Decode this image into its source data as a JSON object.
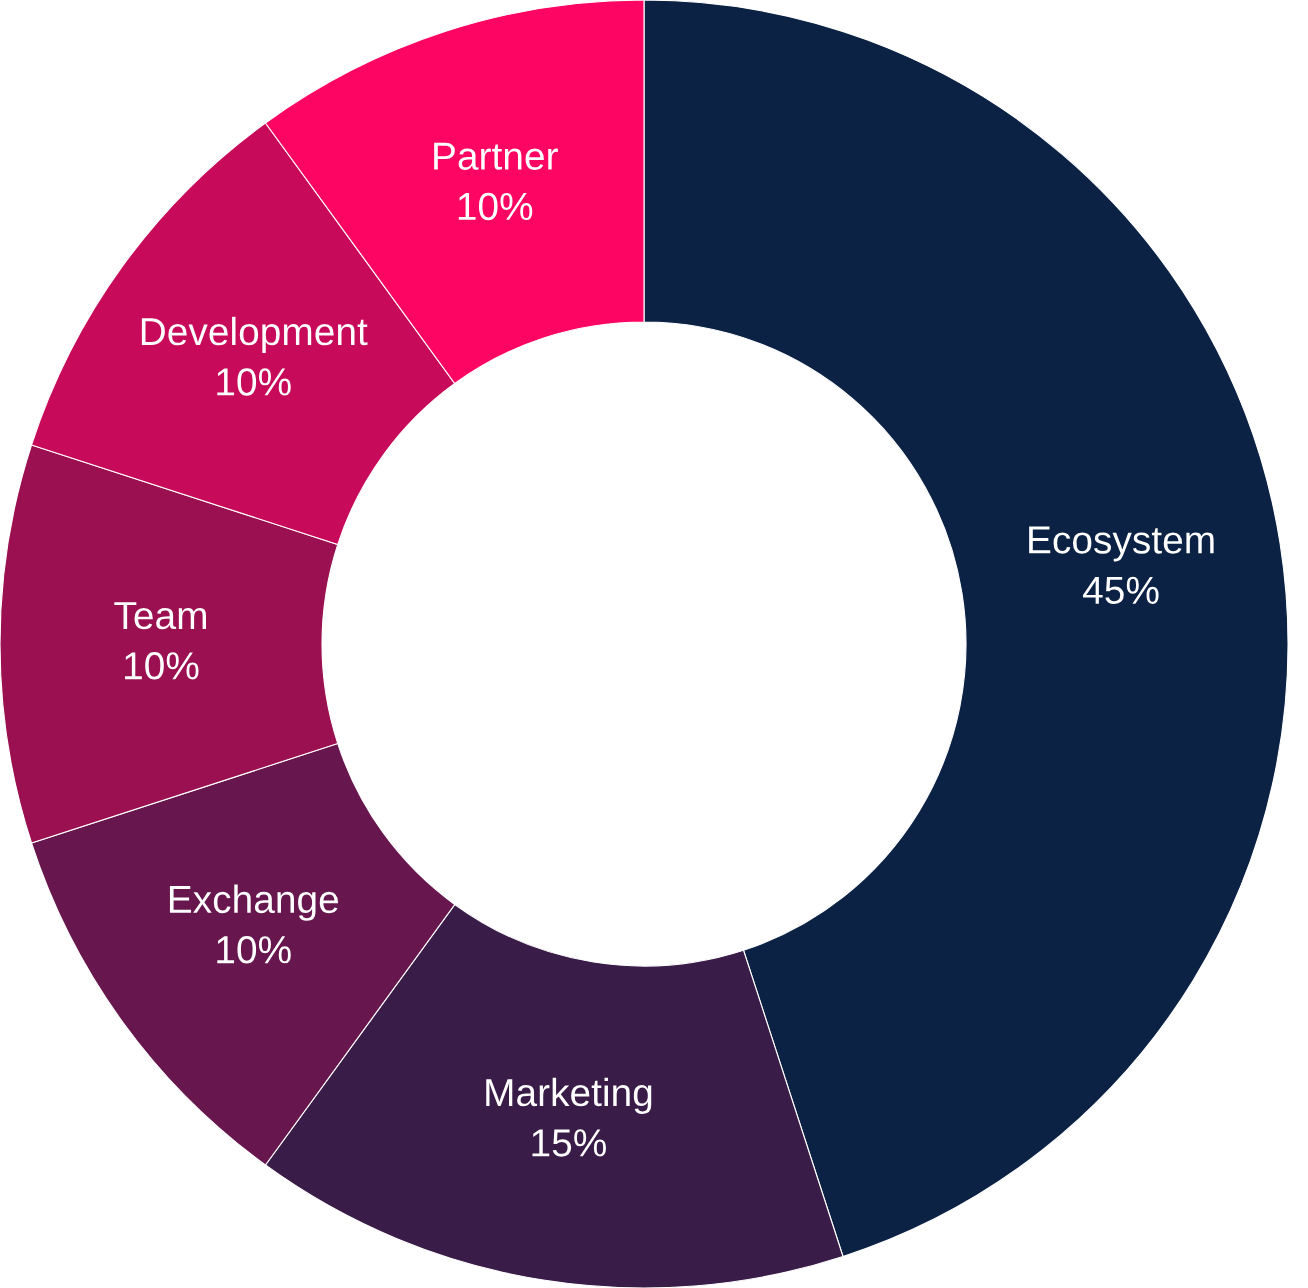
{
  "chart_data": {
    "type": "donut",
    "categories": [
      "Ecosystem",
      "Marketing",
      "Exchange",
      "Team",
      "Development",
      "Partner"
    ],
    "values": [
      45,
      15,
      10,
      10,
      10,
      10
    ],
    "colors": [
      "#0b2245",
      "#3a1c48",
      "#67164e",
      "#9a1050",
      "#c80a5a",
      "#fc0563"
    ],
    "value_labels": [
      "45%",
      "15%",
      "10%",
      "10%",
      "10%",
      "10%"
    ]
  }
}
